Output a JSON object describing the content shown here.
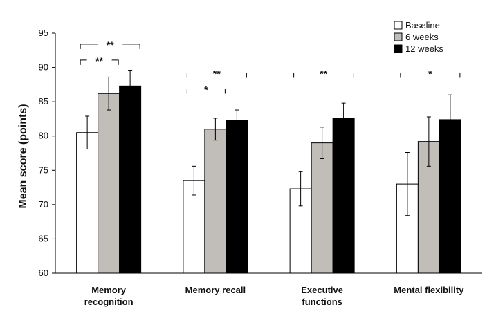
{
  "chart_data": {
    "type": "bar",
    "title": "",
    "xlabel": "",
    "ylabel": "Mean score (points)",
    "ylim": [
      60,
      95
    ],
    "yticks": [
      60,
      65,
      70,
      75,
      80,
      85,
      90,
      95
    ],
    "grid": false,
    "legend_position": "top-right",
    "categories": [
      [
        "Memory",
        "recognition"
      ],
      [
        "Memory recall"
      ],
      [
        "Executive",
        "functions"
      ],
      [
        "Mental flexibility"
      ]
    ],
    "series": [
      {
        "name": "Baseline",
        "color": "#ffffff",
        "values": [
          80.5,
          73.5,
          72.3,
          73.0
        ],
        "errors": [
          2.4,
          2.1,
          2.5,
          4.6
        ]
      },
      {
        "name": "6 weeks",
        "color": "#c1bdb9",
        "values": [
          86.2,
          81.0,
          79.0,
          79.2
        ],
        "errors": [
          2.4,
          1.6,
          2.3,
          3.6
        ]
      },
      {
        "name": "12 weeks",
        "color": "#000000",
        "values": [
          87.3,
          82.3,
          82.6,
          82.4
        ],
        "errors": [
          2.3,
          1.5,
          2.2,
          3.6
        ]
      }
    ],
    "significance": [
      {
        "category": 0,
        "from": 0,
        "to": 2,
        "label": "**"
      },
      {
        "category": 0,
        "from": 0,
        "to": 1,
        "label": "**"
      },
      {
        "category": 1,
        "from": 0,
        "to": 2,
        "label": "**"
      },
      {
        "category": 1,
        "from": 0,
        "to": 1,
        "label": "*"
      },
      {
        "category": 2,
        "from": 0,
        "to": 2,
        "label": "**"
      },
      {
        "category": 3,
        "from": 0,
        "to": 2,
        "label": "*"
      }
    ]
  }
}
